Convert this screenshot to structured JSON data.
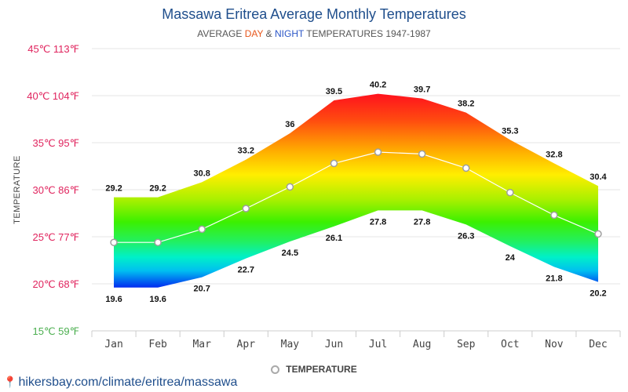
{
  "page": {
    "title": "Massawa Eritrea Average Monthly Temperatures",
    "subtitle_prefix": "AVERAGE ",
    "subtitle_day": "DAY",
    "subtitle_amp": " & ",
    "subtitle_night": "NIGHT",
    "subtitle_suffix": " TEMPERATURES 1947-1987",
    "legend_label": "TEMPERATURE",
    "source": "hikersbay.com/climate/eritrea/massawa",
    "pin_icon": "map-pin-icon"
  },
  "colors": {
    "title": "#1f4e8c",
    "day": "#e8571c",
    "night": "#2b56c7",
    "grid": "#e6e6e6"
  },
  "chart_data": {
    "type": "area",
    "title": "Massawa Eritrea Average Monthly Temperatures",
    "subtitle": "AVERAGE DAY & NIGHT TEMPERATURES 1947-1987",
    "ylabel": "TEMPERATURE",
    "xlabel": "",
    "categories": [
      "Jan",
      "Feb",
      "Mar",
      "Apr",
      "May",
      "Jun",
      "Jul",
      "Aug",
      "Sep",
      "Oct",
      "Nov",
      "Dec"
    ],
    "ylim": [
      15,
      45
    ],
    "y_ticks": [
      {
        "value": 45,
        "label": "45℃ 113℉",
        "color": "#e0245e"
      },
      {
        "value": 40,
        "label": "40℃ 104℉",
        "color": "#e0245e"
      },
      {
        "value": 35,
        "label": "35℃ 95℉",
        "color": "#e0245e"
      },
      {
        "value": 30,
        "label": "30℃ 86℉",
        "color": "#e0245e"
      },
      {
        "value": 25,
        "label": "25℃ 77℉",
        "color": "#e0245e"
      },
      {
        "value": 20,
        "label": "20℃ 68℉",
        "color": "#e0245e"
      },
      {
        "value": 15,
        "label": "15℃ 59℉",
        "color": "#4caf50"
      }
    ],
    "grid": true,
    "legend_position": "bottom",
    "series": [
      {
        "name": "Day",
        "values": [
          29.2,
          29.2,
          30.8,
          33.2,
          36,
          39.5,
          40.2,
          39.7,
          38.2,
          35.3,
          32.8,
          30.4
        ]
      },
      {
        "name": "Night",
        "values": [
          19.6,
          19.6,
          20.7,
          22.7,
          24.5,
          26.1,
          27.8,
          27.8,
          26.3,
          24,
          21.8,
          20.2
        ]
      },
      {
        "name": "TEMPERATURE",
        "values": [
          24.4,
          24.4,
          25.8,
          28.0,
          30.3,
          32.8,
          34.0,
          33.8,
          32.3,
          29.7,
          27.3,
          25.3
        ]
      }
    ]
  }
}
